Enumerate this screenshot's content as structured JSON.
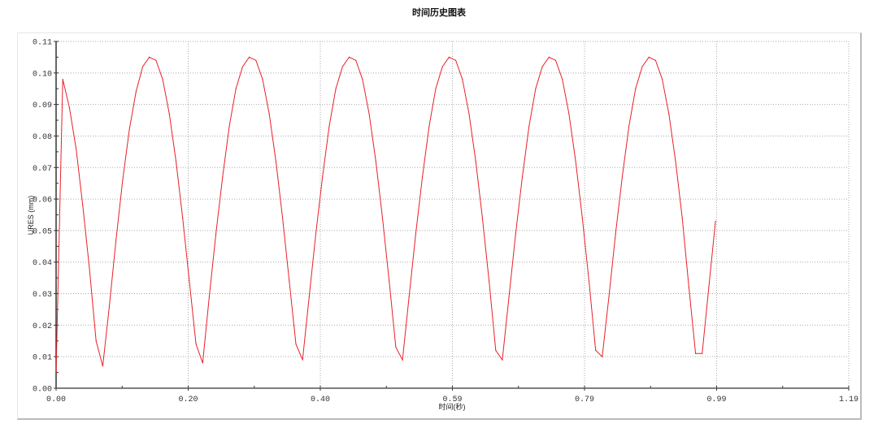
{
  "chart_data": {
    "type": "line",
    "title": "时间历史图表",
    "xlabel": "时间(秒)",
    "ylabel": "URES (mm)",
    "xlim": [
      0,
      1.19
    ],
    "ylim": [
      0,
      0.11
    ],
    "x_tick_labels": [
      "0.00",
      "0.20",
      "0.40",
      "0.59",
      "0.79",
      "0.99",
      "1.19"
    ],
    "y_tick_labels": [
      "0.00",
      "0.01",
      "0.02",
      "0.03",
      "0.04",
      "0.05",
      "0.06",
      "0.07",
      "0.08",
      "0.09",
      "0.10",
      "0.11"
    ],
    "grid": true,
    "line_color": "#e8202a",
    "series": [
      {
        "x": [
          0.0,
          0.01,
          0.02,
          0.03,
          0.04,
          0.05,
          0.06,
          0.07,
          0.08,
          0.09,
          0.1,
          0.11,
          0.12,
          0.13,
          0.14,
          0.15,
          0.16,
          0.17,
          0.18,
          0.19,
          0.2,
          0.21,
          0.22,
          0.23,
          0.24,
          0.25,
          0.26,
          0.27,
          0.28,
          0.29,
          0.3,
          0.31,
          0.32,
          0.33,
          0.34,
          0.35,
          0.36,
          0.37,
          0.38,
          0.39,
          0.4,
          0.41,
          0.42,
          0.43,
          0.44,
          0.45,
          0.46,
          0.47,
          0.48,
          0.49,
          0.5,
          0.51,
          0.52,
          0.53,
          0.54,
          0.55,
          0.56,
          0.57,
          0.58,
          0.59,
          0.6,
          0.61,
          0.62,
          0.63,
          0.64,
          0.65,
          0.66,
          0.67,
          0.68,
          0.69,
          0.7,
          0.71,
          0.72,
          0.73,
          0.74,
          0.75,
          0.76,
          0.77,
          0.78,
          0.79,
          0.8,
          0.81,
          0.82,
          0.83,
          0.84,
          0.85,
          0.86,
          0.87,
          0.88,
          0.89,
          0.9,
          0.91,
          0.92,
          0.93,
          0.94,
          0.95,
          0.96,
          0.97,
          0.98,
          0.99
        ],
        "y": [
          0.005,
          0.098,
          0.089,
          0.076,
          0.058,
          0.038,
          0.015,
          0.007,
          0.026,
          0.047,
          0.066,
          0.082,
          0.094,
          0.102,
          0.105,
          0.104,
          0.098,
          0.087,
          0.072,
          0.054,
          0.034,
          0.014,
          0.008,
          0.029,
          0.049,
          0.067,
          0.083,
          0.095,
          0.102,
          0.105,
          0.104,
          0.098,
          0.087,
          0.072,
          0.054,
          0.034,
          0.014,
          0.009,
          0.029,
          0.049,
          0.067,
          0.083,
          0.095,
          0.102,
          0.105,
          0.104,
          0.098,
          0.087,
          0.072,
          0.054,
          0.034,
          0.013,
          0.009,
          0.029,
          0.049,
          0.067,
          0.083,
          0.095,
          0.102,
          0.105,
          0.104,
          0.098,
          0.087,
          0.072,
          0.054,
          0.034,
          0.012,
          0.009,
          0.029,
          0.049,
          0.067,
          0.083,
          0.095,
          0.102,
          0.105,
          0.104,
          0.098,
          0.087,
          0.072,
          0.054,
          0.034,
          0.012,
          0.01,
          0.029,
          0.049,
          0.067,
          0.083,
          0.095,
          0.102,
          0.105,
          0.104,
          0.098,
          0.087,
          0.072,
          0.054,
          0.032,
          0.011,
          0.011,
          0.032,
          0.053
        ]
      }
    ]
  }
}
